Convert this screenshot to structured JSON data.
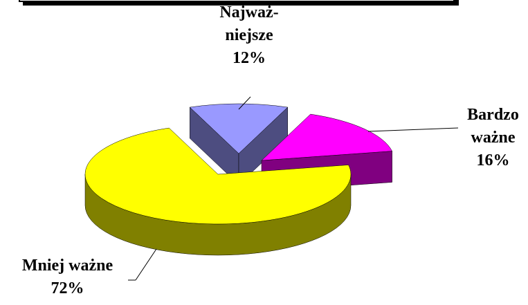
{
  "chart_data": {
    "type": "pie",
    "categories": [
      "Najważ-niejsze",
      "Bardzo ważne",
      "Mniej ważne"
    ],
    "values": [
      12,
      16,
      72
    ],
    "value_labels": [
      "12%",
      "16%",
      "72%"
    ],
    "colors": [
      "#9999ff",
      "#ff00ff",
      "#ffff00"
    ]
  }
}
